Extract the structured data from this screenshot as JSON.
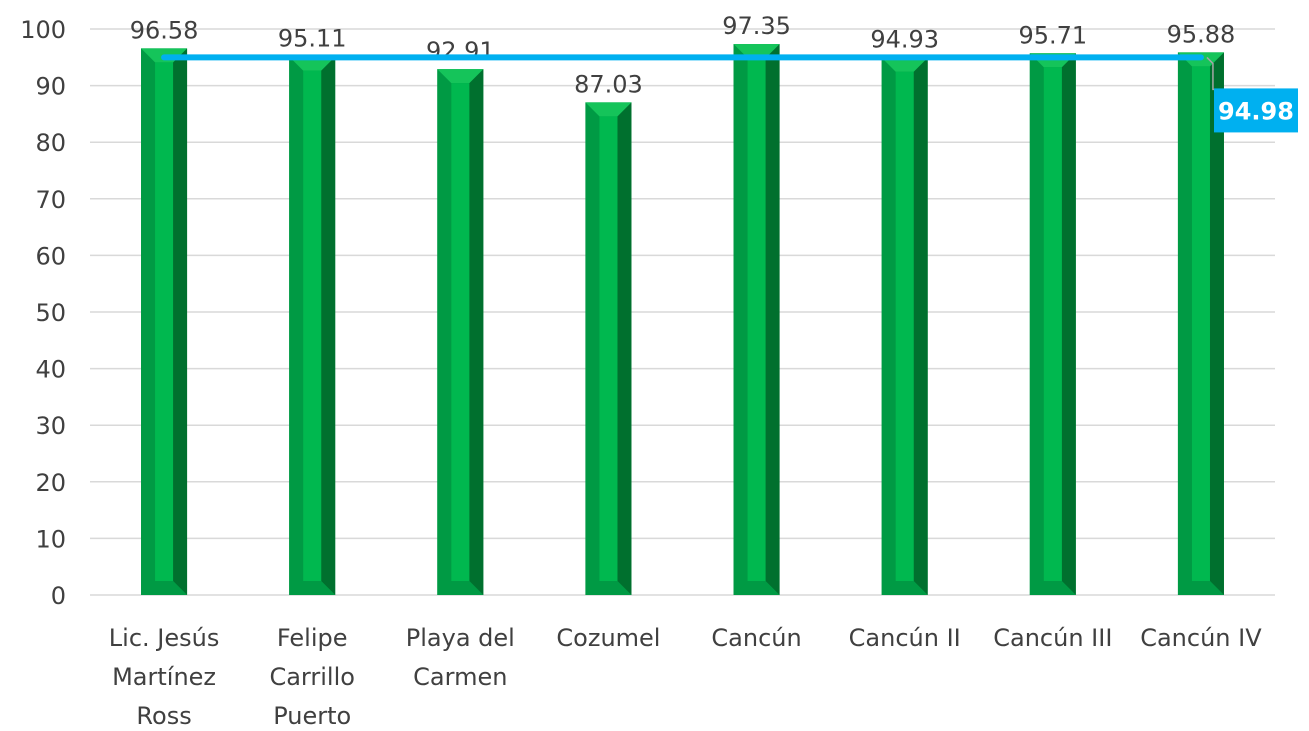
{
  "chart_data": {
    "type": "bar",
    "categories": [
      [
        "Lic. Jesús",
        "Martínez",
        "Ross"
      ],
      [
        "Felipe",
        "Carrillo",
        "Puerto"
      ],
      [
        "Playa del",
        "Carmen"
      ],
      [
        "Cozumel"
      ],
      [
        "Cancún"
      ],
      [
        "Cancún II"
      ],
      [
        "Cancún III"
      ],
      [
        "Cancún IV"
      ]
    ],
    "values": [
      96.58,
      95.11,
      92.91,
      87.03,
      97.35,
      94.93,
      95.71,
      95.88
    ],
    "value_labels": [
      "96.58",
      "95.11",
      "92.91",
      "87.03",
      "97.35",
      "94.93",
      "95.71",
      "95.88"
    ],
    "average": {
      "value": 94.98,
      "label": "94.98"
    },
    "ylim": [
      0,
      100
    ],
    "yticks": [
      0,
      10,
      20,
      30,
      40,
      50,
      60,
      70,
      80,
      90,
      100
    ],
    "title": "",
    "xlabel": "",
    "ylabel": "",
    "grid": true,
    "colors": {
      "bar_front": "#00b050",
      "bar_inner": "#00b84f",
      "bar_light": "#15c45a",
      "bar_dark": "#00702e",
      "bar_mid": "#009a44",
      "average_line": "#00b0f0",
      "average_box": "#00b0f0",
      "grid": "#d9d9d9",
      "text": "#404040"
    }
  }
}
